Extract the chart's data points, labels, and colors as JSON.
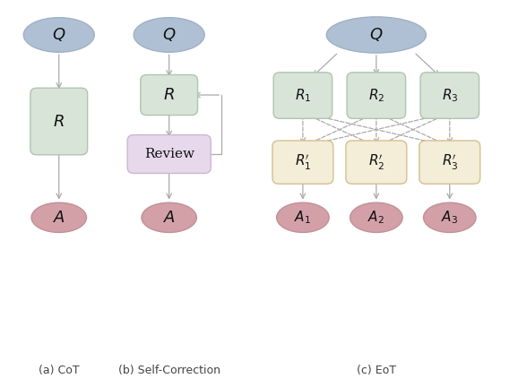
{
  "fig_width": 5.88,
  "fig_height": 4.32,
  "dpi": 100,
  "bg_color": "#ffffff",
  "ellipse_color_Q": "#b0c0d4",
  "ellipse_color_A": "#d4a0a8",
  "ellipse_edge_Q": "#a0b0c4",
  "ellipse_edge_A": "#c09098",
  "rect_color_R": "#d8e4d8",
  "rect_edge_R": "#b0c4b0",
  "rect_color_review": "#e8d8ec",
  "rect_edge_review": "#c8b8d0",
  "rect_color_Rprime": "#f4edd8",
  "rect_edge_Rprime": "#d4c090",
  "arrow_color": "#aaaaaa",
  "text_color": "#111111",
  "label_color": "#444444",
  "captions": [
    "(a) CoT",
    "(b) Self-Correction",
    "(c) EoT"
  ],
  "xlim": [
    0,
    10
  ],
  "ylim": [
    0,
    8
  ]
}
